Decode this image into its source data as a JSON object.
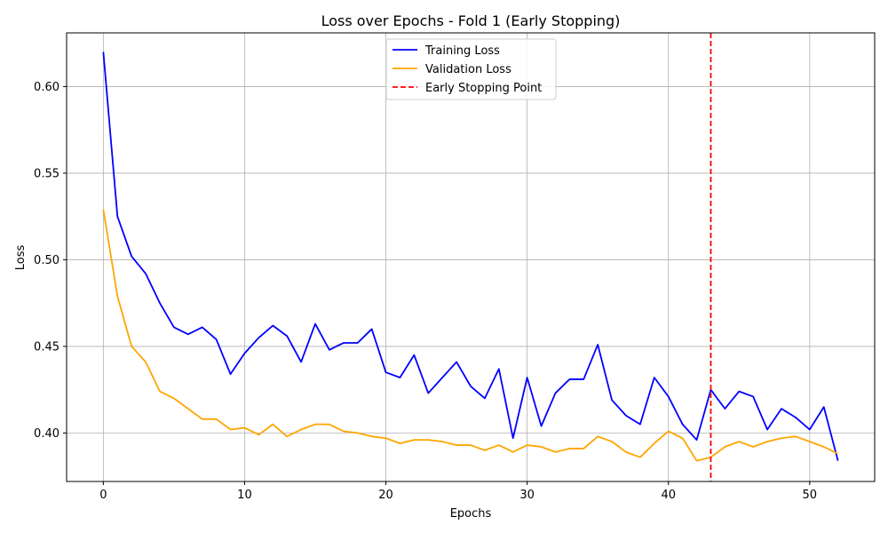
{
  "chart_data": {
    "type": "line",
    "title": "Loss over Epochs - Fold 1 (Early Stopping)",
    "xlabel": "Epochs",
    "ylabel": "Loss",
    "xlim": [
      -2.6,
      54.6
    ],
    "ylim": [
      0.372,
      0.631
    ],
    "xticks": [
      0,
      10,
      20,
      30,
      40,
      50
    ],
    "yticks": [
      0.4,
      0.45,
      0.5,
      0.55,
      0.6
    ],
    "ytick_labels": [
      "0.40",
      "0.45",
      "0.50",
      "0.55",
      "0.60"
    ],
    "grid": true,
    "legend_position": "top-center",
    "x": [
      0,
      1,
      2,
      3,
      4,
      5,
      6,
      7,
      8,
      9,
      10,
      11,
      12,
      13,
      14,
      15,
      16,
      17,
      18,
      19,
      20,
      21,
      22,
      23,
      24,
      25,
      26,
      27,
      28,
      29,
      30,
      31,
      32,
      33,
      34,
      35,
      36,
      37,
      38,
      39,
      40,
      41,
      42,
      43,
      44,
      45,
      46,
      47,
      48,
      49,
      50,
      51,
      52
    ],
    "series": [
      {
        "name": "Training Loss",
        "color": "#0000ff",
        "values": [
          0.62,
          0.525,
          0.502,
          0.492,
          0.475,
          0.461,
          0.457,
          0.461,
          0.454,
          0.434,
          0.446,
          0.455,
          0.462,
          0.456,
          0.441,
          0.463,
          0.448,
          0.452,
          0.452,
          0.46,
          0.435,
          0.432,
          0.445,
          0.423,
          0.432,
          0.441,
          0.427,
          0.42,
          0.437,
          0.397,
          0.432,
          0.404,
          0.423,
          0.431,
          0.431,
          0.451,
          0.419,
          0.41,
          0.405,
          0.432,
          0.421,
          0.405,
          0.396,
          0.425,
          0.414,
          0.424,
          0.421,
          0.402,
          0.414,
          0.409,
          0.402,
          0.415,
          0.384
        ]
      },
      {
        "name": "Validation Loss",
        "color": "#ffa500",
        "values": [
          0.529,
          0.479,
          0.45,
          0.441,
          0.424,
          0.42,
          0.414,
          0.408,
          0.408,
          0.402,
          0.403,
          0.399,
          0.405,
          0.398,
          0.402,
          0.405,
          0.405,
          0.401,
          0.4,
          0.398,
          0.397,
          0.394,
          0.396,
          0.396,
          0.395,
          0.393,
          0.393,
          0.39,
          0.393,
          0.389,
          0.393,
          0.392,
          0.389,
          0.391,
          0.391,
          0.398,
          0.395,
          0.389,
          0.386,
          0.394,
          0.401,
          0.397,
          0.384,
          0.386,
          0.392,
          0.395,
          0.392,
          0.395,
          0.397,
          0.398,
          0.395,
          0.392,
          0.388
        ]
      }
    ],
    "early_stopping": {
      "name": "Early Stopping Point",
      "x": 43,
      "color": "#ff0000"
    }
  }
}
